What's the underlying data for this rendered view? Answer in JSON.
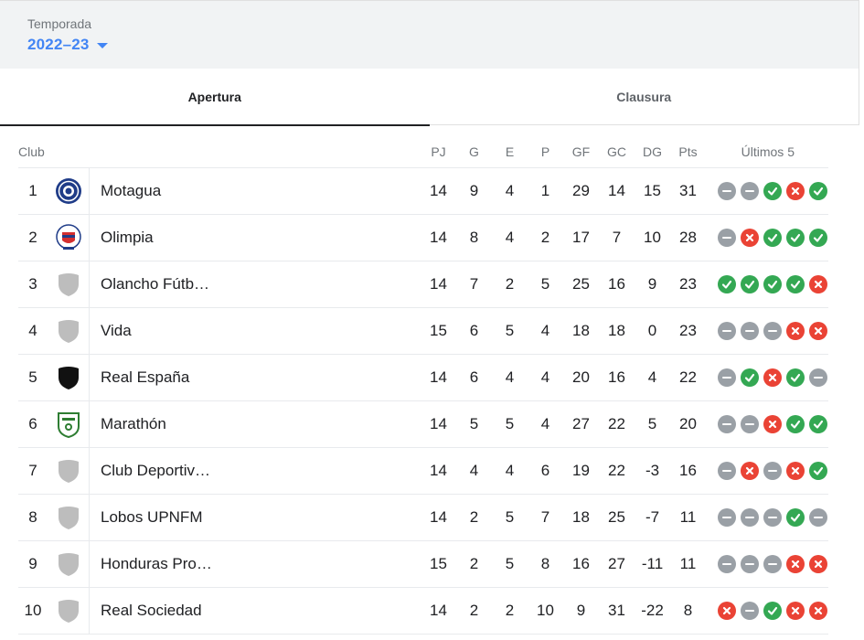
{
  "season": {
    "label": "Temporada",
    "value": "2022–23"
  },
  "tabs": [
    {
      "label": "Apertura",
      "active": true
    },
    {
      "label": "Clausura",
      "active": false
    }
  ],
  "headers": {
    "club": "Club",
    "pj": "PJ",
    "g": "G",
    "e": "E",
    "p": "P",
    "gf": "GF",
    "gc": "GC",
    "dg": "DG",
    "pts": "Pts",
    "last5": "Últimos 5"
  },
  "colors": {
    "win": "#34a853",
    "loss": "#ea4335",
    "draw": "#9aa0a6",
    "accent": "#4285f4"
  },
  "rows": [
    {
      "rank": "1",
      "team": "Motagua",
      "crest": "motagua",
      "pj": "14",
      "g": "9",
      "e": "4",
      "p": "1",
      "gf": "29",
      "gc": "14",
      "dg": "15",
      "pts": "31",
      "last5": [
        "D",
        "D",
        "W",
        "L",
        "W"
      ]
    },
    {
      "rank": "2",
      "team": "Olimpia",
      "crest": "olimpia",
      "pj": "14",
      "g": "8",
      "e": "4",
      "p": "2",
      "gf": "17",
      "gc": "7",
      "dg": "10",
      "pts": "28",
      "last5": [
        "D",
        "L",
        "W",
        "W",
        "W"
      ]
    },
    {
      "rank": "3",
      "team": "Olancho Fútb…",
      "crest": "generic",
      "pj": "14",
      "g": "7",
      "e": "2",
      "p": "5",
      "gf": "25",
      "gc": "16",
      "dg": "9",
      "pts": "23",
      "last5": [
        "W",
        "W",
        "W",
        "W",
        "L"
      ]
    },
    {
      "rank": "4",
      "team": "Vida",
      "crest": "generic",
      "pj": "15",
      "g": "6",
      "e": "5",
      "p": "4",
      "gf": "18",
      "gc": "18",
      "dg": "0",
      "pts": "23",
      "last5": [
        "D",
        "D",
        "D",
        "L",
        "L"
      ]
    },
    {
      "rank": "5",
      "team": "Real España",
      "crest": "black",
      "pj": "14",
      "g": "6",
      "e": "4",
      "p": "4",
      "gf": "20",
      "gc": "16",
      "dg": "4",
      "pts": "22",
      "last5": [
        "D",
        "W",
        "L",
        "W",
        "D"
      ]
    },
    {
      "rank": "6",
      "team": "Marathón",
      "crest": "marathon",
      "pj": "14",
      "g": "5",
      "e": "5",
      "p": "4",
      "gf": "27",
      "gc": "22",
      "dg": "5",
      "pts": "20",
      "last5": [
        "D",
        "D",
        "L",
        "W",
        "W"
      ]
    },
    {
      "rank": "7",
      "team": "Club Deportiv…",
      "crest": "generic",
      "pj": "14",
      "g": "4",
      "e": "4",
      "p": "6",
      "gf": "19",
      "gc": "22",
      "dg": "-3",
      "pts": "16",
      "last5": [
        "D",
        "L",
        "D",
        "L",
        "W"
      ]
    },
    {
      "rank": "8",
      "team": "Lobos UPNFM",
      "crest": "generic",
      "pj": "14",
      "g": "2",
      "e": "5",
      "p": "7",
      "gf": "18",
      "gc": "25",
      "dg": "-7",
      "pts": "11",
      "last5": [
        "D",
        "D",
        "D",
        "W",
        "D"
      ]
    },
    {
      "rank": "9",
      "team": "Honduras Pro…",
      "crest": "generic",
      "pj": "15",
      "g": "2",
      "e": "5",
      "p": "8",
      "gf": "16",
      "gc": "27",
      "dg": "-11",
      "pts": "11",
      "last5": [
        "D",
        "D",
        "D",
        "L",
        "L"
      ]
    },
    {
      "rank": "10",
      "team": "Real Sociedad",
      "crest": "generic",
      "pj": "14",
      "g": "2",
      "e": "2",
      "p": "10",
      "gf": "9",
      "gc": "31",
      "dg": "-22",
      "pts": "8",
      "last5": [
        "L",
        "D",
        "W",
        "L",
        "L"
      ]
    }
  ]
}
